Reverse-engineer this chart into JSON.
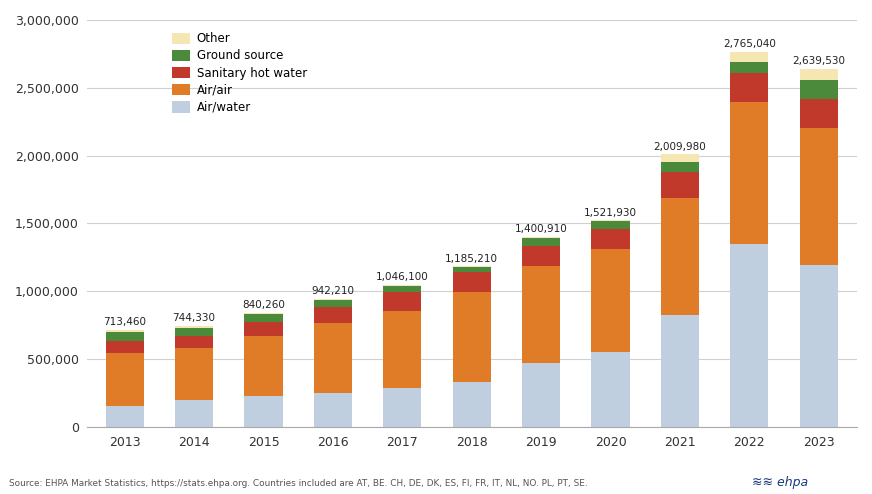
{
  "years": [
    2013,
    2014,
    2015,
    2016,
    2017,
    2018,
    2019,
    2020,
    2021,
    2022,
    2023
  ],
  "totals": [
    713460,
    744330,
    840260,
    942210,
    1046100,
    1185210,
    1400910,
    1521930,
    2009980,
    2765040,
    2639530
  ],
  "air_water": [
    155000,
    193000,
    225000,
    250000,
    283000,
    328000,
    468000,
    548000,
    820000,
    1345000,
    1195000
  ],
  "air_air": [
    388000,
    388000,
    443000,
    512000,
    572000,
    663000,
    720000,
    763000,
    870000,
    1050000,
    1010000
  ],
  "sanitary_hot": [
    90000,
    88000,
    105000,
    120000,
    138000,
    150000,
    145000,
    148000,
    185000,
    215000,
    215000
  ],
  "ground_source": [
    68000,
    62000,
    55000,
    50000,
    46000,
    37000,
    57000,
    56000,
    80000,
    80000,
    135000
  ],
  "other": [
    12460,
    13330,
    12260,
    10210,
    7100,
    7210,
    10910,
    6930,
    54980,
    75040,
    84530
  ],
  "colors": {
    "air_water": "#bfcfe0",
    "air_air": "#e07b27",
    "sanitary_hot": "#c0392b",
    "ground_source": "#4a8a3a",
    "other": "#f5e6b2"
  },
  "labels": {
    "air_water": "Air/water",
    "air_air": "Air/air",
    "sanitary_hot": "Sanitary hot water",
    "ground_source": "Ground source",
    "other": "Other"
  },
  "ylim": [
    0,
    3000000
  ],
  "yticks": [
    0,
    500000,
    1000000,
    1500000,
    2000000,
    2500000,
    3000000
  ],
  "source_text": "Source: EHPA Market Statistics, https://stats.ehpa.org. Countries included are AT, BE. CH, DE, DK, ES, FI, FR, IT, NL, NO. PL, PT, SE.",
  "bg_color": "#ffffff",
  "grid_color": "#d0d0d0"
}
